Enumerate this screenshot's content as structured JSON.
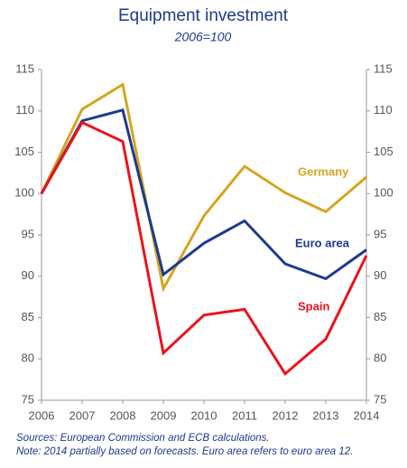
{
  "chart_data": {
    "type": "line",
    "title": "Equipment investment",
    "subtitle": "2006=100",
    "x": [
      2006,
      2007,
      2008,
      2009,
      2010,
      2011,
      2012,
      2013,
      2014
    ],
    "xlim": [
      2006,
      2014
    ],
    "xticks": [
      2006,
      2007,
      2008,
      2009,
      2010,
      2011,
      2012,
      2013,
      2014
    ],
    "ylim": [
      75,
      115
    ],
    "yticks": [
      75,
      80,
      85,
      90,
      95,
      100,
      105,
      110,
      115
    ],
    "y2lim": [
      75,
      115
    ],
    "y2ticks": [
      75,
      80,
      85,
      90,
      95,
      100,
      105,
      110,
      115
    ],
    "grid": false,
    "series": [
      {
        "name": "Germany",
        "color": "#d4a520",
        "values": [
          100,
          110.2,
          113.2,
          88.5,
          97.3,
          103.3,
          100.1,
          97.8,
          102
        ]
      },
      {
        "name": "Euro area",
        "color": "#1c3a8e",
        "values": [
          100,
          108.8,
          110.1,
          90.2,
          94.0,
          96.7,
          91.5,
          89.7,
          93.2
        ]
      },
      {
        "name": "Spain",
        "color": "#e8141c",
        "values": [
          100,
          108.6,
          106.3,
          80.7,
          85.3,
          86.0,
          78.2,
          82.4,
          92.5
        ]
      }
    ],
    "notes": [
      "Sources: European Commission and ECB calculations.",
      "Note: 2014 partially based on forecasts. Euro area refers to euro area 12."
    ]
  }
}
